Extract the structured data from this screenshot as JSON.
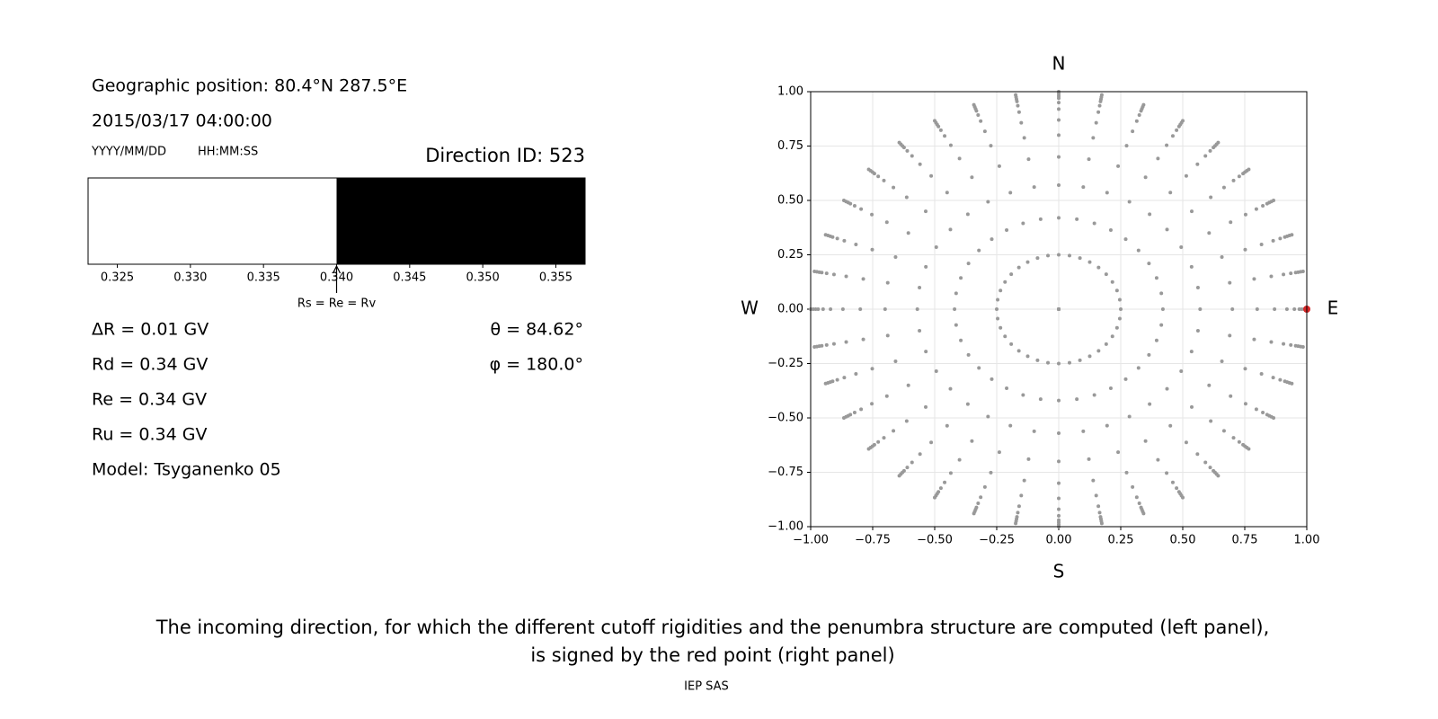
{
  "header": {
    "position": "Geographic position: 80.4°N 287.5°E",
    "datetime": "2015/03/17 04:00:00",
    "date_format": "YYYY/MM/DD",
    "time_format": "HH:MM:SS"
  },
  "chart_data": [
    {
      "type": "penumbra",
      "title": "Direction ID: 523",
      "xlim": [
        0.323,
        0.357
      ],
      "xticks": [
        0.325,
        0.33,
        0.335,
        0.34,
        0.345,
        0.35,
        0.355
      ],
      "xtick_labels": [
        "0.325",
        "0.330",
        "0.335",
        "0.340",
        "0.345",
        "0.350",
        "0.355"
      ],
      "segments": [
        {
          "start": 0.323,
          "end": 0.34,
          "color": "#ffffff"
        },
        {
          "start": 0.34,
          "end": 0.357,
          "color": "#000000"
        }
      ],
      "annotation": {
        "text": "Rs = Re = Rv",
        "x": 0.34
      }
    },
    {
      "type": "scatter",
      "xlim": [
        -1,
        1
      ],
      "ylim": [
        -1,
        1
      ],
      "xticks": [
        {
          "value": -1,
          "label": "−1.00"
        },
        {
          "value": -0.75,
          "label": "−0.75"
        },
        {
          "value": -0.5,
          "label": "−0.50"
        },
        {
          "value": -0.25,
          "label": "−0.25"
        },
        {
          "value": 0,
          "label": "0.00"
        },
        {
          "value": 0.25,
          "label": "0.25"
        },
        {
          "value": 0.5,
          "label": "0.50"
        },
        {
          "value": 0.75,
          "label": "0.75"
        },
        {
          "value": 1,
          "label": "1.00"
        }
      ],
      "yticks": [
        {
          "value": -1,
          "label": "−1.00"
        },
        {
          "value": -0.75,
          "label": "−0.75"
        },
        {
          "value": -0.5,
          "label": "−0.50"
        },
        {
          "value": -0.25,
          "label": "−0.25"
        },
        {
          "value": 0,
          "label": "0.00"
        },
        {
          "value": 0.25,
          "label": "0.25"
        },
        {
          "value": 0.5,
          "label": "0.50"
        },
        {
          "value": 0.75,
          "label": "0.75"
        },
        {
          "value": 1,
          "label": "1.00"
        }
      ],
      "grid": true,
      "color": "#999999",
      "angles": [
        0,
        10,
        20,
        30,
        40,
        50,
        60,
        70,
        80,
        90,
        100,
        110,
        120,
        130,
        140,
        150,
        160,
        170,
        180,
        190,
        200,
        210,
        220,
        230,
        240,
        250,
        260,
        270,
        280,
        290,
        300,
        310,
        320,
        330,
        340,
        350
      ],
      "radii": [
        0,
        0.25,
        0.42,
        0.57,
        0.7,
        0.8,
        0.87,
        0.92,
        0.95,
        0.97,
        0.98,
        0.99,
        1.0
      ],
      "highlight": {
        "x": 1,
        "y": 0,
        "color": "#d62728"
      },
      "compass": {
        "north": "N",
        "south": "S",
        "west": "W",
        "east": "E"
      }
    }
  ],
  "results": {
    "delta_r": "ΔR = 0.01 GV",
    "rd": "Rd = 0.34 GV",
    "re": "Re = 0.34 GV",
    "ru": "Ru = 0.34 GV",
    "model": "Model: Tsyganenko 05",
    "theta": "θ = 84.62°",
    "phi": "φ = 180.0°"
  },
  "caption": [
    "The incoming direction, for which the different cutoff rigidities and the penumbra structure are computed (left panel),",
    "is signed by the red point (right panel)"
  ],
  "footer": "IEP SAS"
}
